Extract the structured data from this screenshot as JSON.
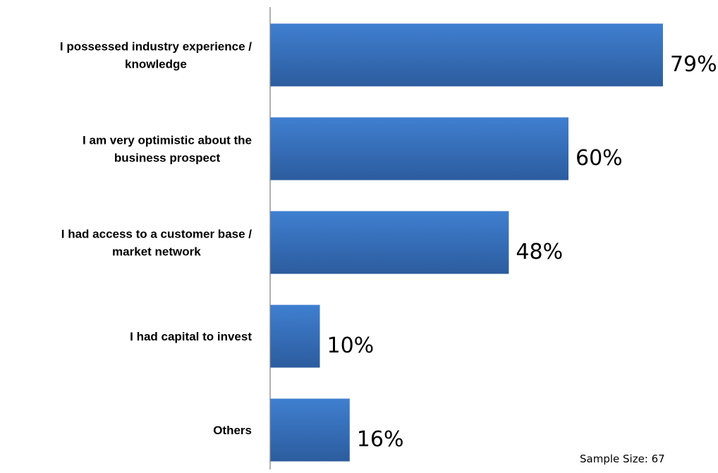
{
  "chart_data": {
    "type": "bar",
    "orientation": "horizontal",
    "categories": [
      [
        "I possessed industry experience /",
        "knowledge"
      ],
      [
        "I am very optimistic about the",
        "business prospect"
      ],
      [
        "I had access to a customer base /",
        "market network"
      ],
      [
        "I had capital to invest"
      ],
      [
        "Others"
      ]
    ],
    "values": [
      79,
      60,
      48,
      10,
      16
    ],
    "value_labels": [
      "79%",
      "60%",
      "48%",
      "10%",
      "16%"
    ],
    "unit": "%",
    "xlim": [
      0,
      100
    ],
    "grid": false,
    "legend": "none",
    "bar_color_top": "#3f7fd0",
    "bar_color_bottom": "#2c5c9e",
    "axis_color": "#868686"
  },
  "note": {
    "sample_size": "Sample Size: 67"
  }
}
